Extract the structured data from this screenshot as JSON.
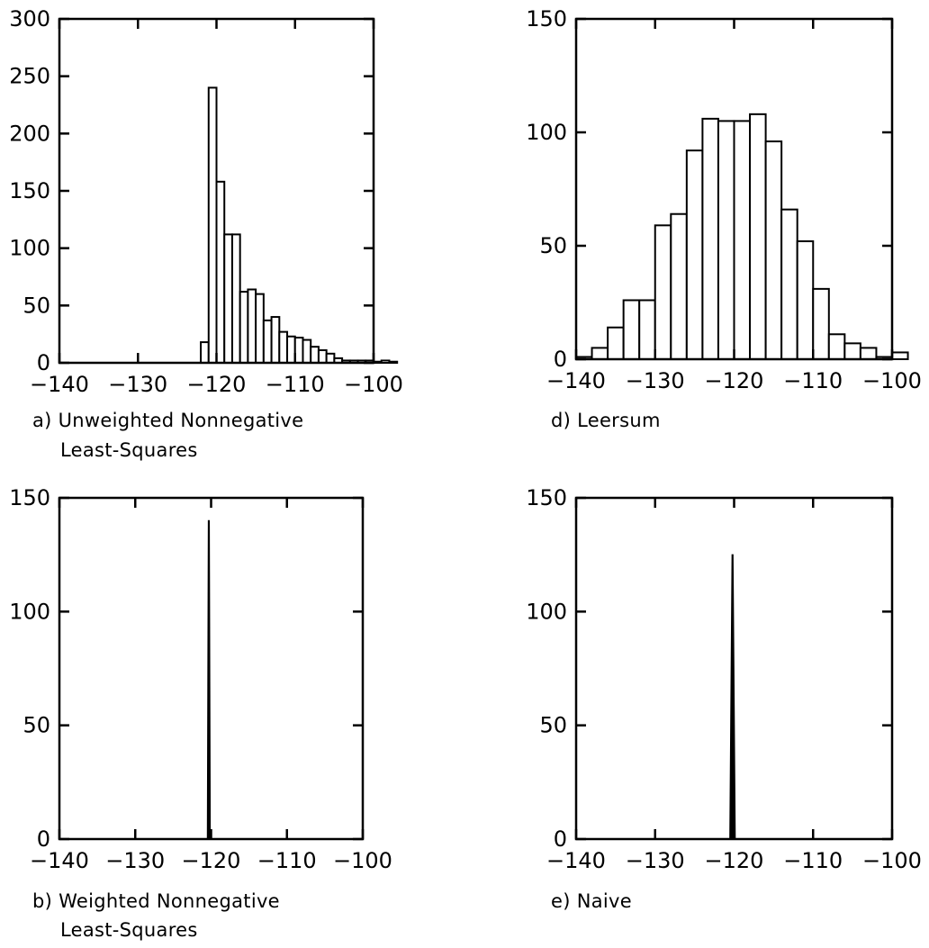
{
  "colors": {
    "ink": "#000000",
    "background": "#ffffff"
  },
  "chart_data": [
    {
      "id": "a",
      "type": "bar",
      "caption": [
        "a) Unweighted Nonnegative",
        "Least-Squares"
      ],
      "xlim": [
        -140,
        -100
      ],
      "ylim": [
        0,
        300
      ],
      "xticks": [
        -140,
        -130,
        -120,
        -110,
        -100
      ],
      "xtick_labels": [
        "−140",
        "−130",
        "−120",
        "−110",
        "−100"
      ],
      "yticks": [
        0,
        50,
        100,
        150,
        200,
        250,
        300
      ],
      "ytick_labels": [
        "0",
        "50",
        "100",
        "150",
        "200",
        "250",
        "300"
      ],
      "bin_width": 1,
      "bin_start": -123,
      "values": [
        0,
        18,
        240,
        158,
        112,
        112,
        62,
        64,
        60,
        37,
        40,
        27,
        23,
        22,
        20,
        14,
        11,
        8,
        4,
        2,
        2,
        2,
        2,
        1,
        2,
        1
      ],
      "grid": false,
      "legend": "none"
    },
    {
      "id": "d",
      "type": "bar",
      "caption": [
        "d) Leersum"
      ],
      "xlim": [
        -140,
        -100
      ],
      "ylim": [
        0,
        150
      ],
      "xticks": [
        -140,
        -130,
        -120,
        -110,
        -100
      ],
      "xtick_labels": [
        "−140",
        "−130",
        "−120",
        "−110",
        "−100"
      ],
      "yticks": [
        0,
        50,
        100,
        150
      ],
      "ytick_labels": [
        "0",
        "50",
        "100",
        "150"
      ],
      "bin_width": 2,
      "bin_start": -140,
      "values": [
        1,
        5,
        14,
        26,
        26,
        59,
        64,
        92,
        106,
        105,
        105,
        108,
        96,
        66,
        52,
        31,
        11,
        7,
        5,
        1,
        3
      ],
      "grid": false,
      "legend": "none"
    },
    {
      "id": "b",
      "type": "bar",
      "caption": [
        "b) Weighted Nonnegative",
        "Least-Squares"
      ],
      "xlim": [
        -140,
        -100
      ],
      "ylim": [
        0,
        150
      ],
      "xticks": [
        -140,
        -130,
        -120,
        -110,
        -100
      ],
      "xtick_labels": [
        "−140",
        "−130",
        "−120",
        "−110",
        "−100"
      ],
      "yticks": [
        0,
        50,
        100,
        150
      ],
      "ytick_labels": [
        "0",
        "50",
        "100",
        "150"
      ],
      "spike_center": -120.3,
      "spike_halfwidth": 0.2,
      "spike_height": 140,
      "grid": false,
      "legend": "none"
    },
    {
      "id": "e",
      "type": "bar",
      "caption": [
        "e) Naive"
      ],
      "xlim": [
        -140,
        -100
      ],
      "ylim": [
        0,
        150
      ],
      "xticks": [
        -140,
        -130,
        -120,
        -110,
        -100
      ],
      "xtick_labels": [
        "−140",
        "−130",
        "−120",
        "−110",
        "−100"
      ],
      "yticks": [
        0,
        50,
        100,
        150
      ],
      "ytick_labels": [
        "0",
        "50",
        "100",
        "150"
      ],
      "spike_center": -120.2,
      "spike_halfwidth": 0.35,
      "spike_height": 125,
      "grid": false,
      "legend": "none"
    }
  ]
}
